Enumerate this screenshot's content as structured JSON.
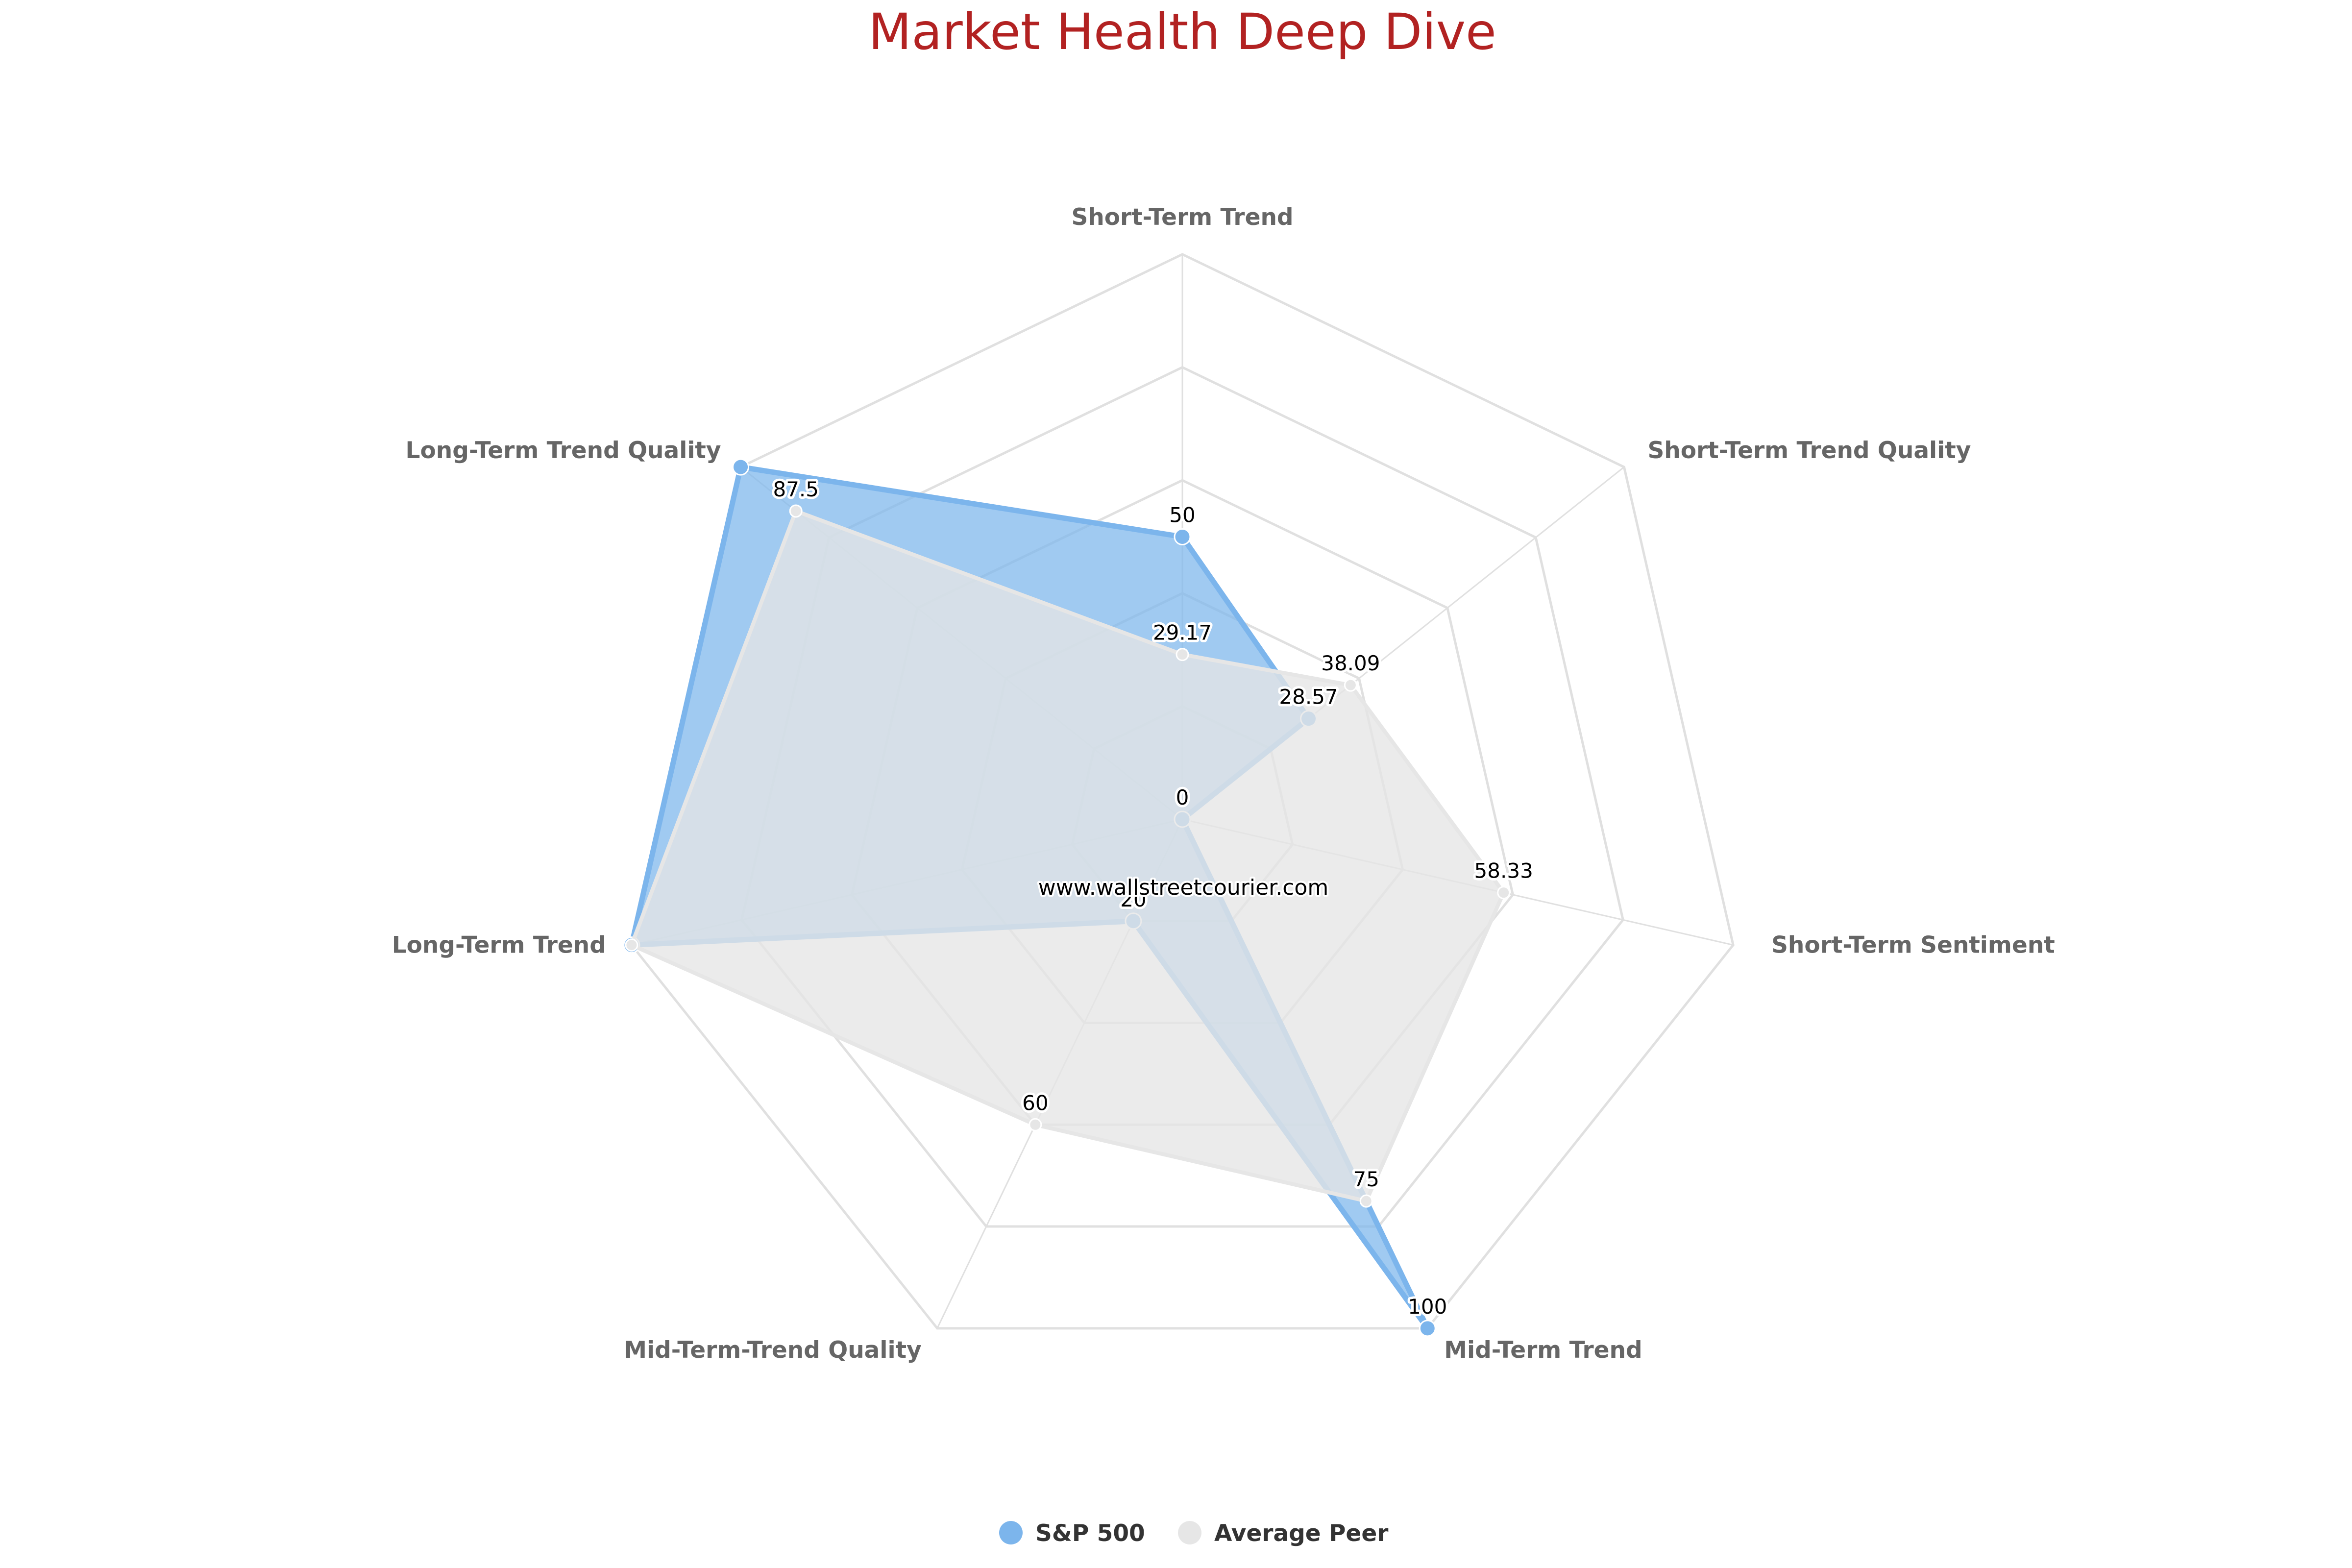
{
  "chart_data": {
    "type": "radar",
    "title": "Market Health Deep Dive",
    "categories": [
      "Short-Term Trend",
      "Short-Term Trend Quality",
      "Short-Term Sentiment",
      "Mid-Term Trend",
      "Mid-Term-Trend Quality",
      "Long-Term Trend",
      "Long-Term Trend Quality"
    ],
    "ylim": [
      0,
      100
    ],
    "grid": true,
    "legend_position": "bottom-center",
    "series": [
      {
        "name": "S&P 500",
        "values": [
          50,
          28.57,
          0,
          100,
          20,
          100,
          100
        ],
        "color": "#7cb5ec"
      },
      {
        "name": "Average Peer",
        "values": [
          29.17,
          38.09,
          58.33,
          75,
          60,
          100,
          87.5
        ],
        "color": "#e6e6e6"
      }
    ],
    "data_labels": [
      "50",
      "28.57",
      "0",
      "100",
      "20",
      "29.17",
      "38.09",
      "58.33",
      "75",
      "60",
      "87.5"
    ],
    "watermark": "www.wallstreetcourier.com"
  },
  "colors": {
    "title": "#b22222",
    "grid": "#e0e0e0",
    "axis_label": "#666666"
  }
}
